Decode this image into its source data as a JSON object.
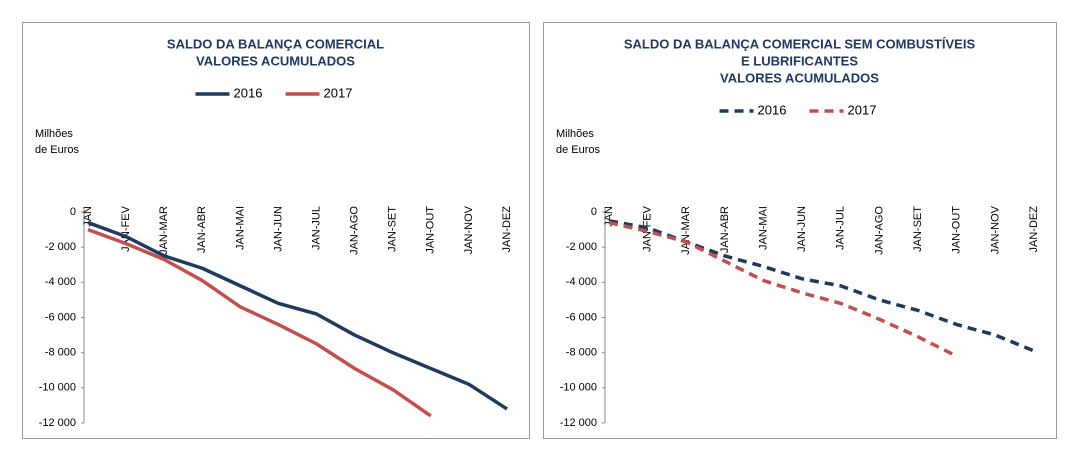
{
  "chart_data": [
    {
      "type": "line",
      "title": [
        "SALDO DA BALANÇA COMERCIAL",
        "VALORES ACUMULADOS"
      ],
      "y_label": [
        "Milhões",
        "de Euros"
      ],
      "line_style": "solid",
      "categories": [
        "JAN",
        "JAN-FEV",
        "JAN-MAR",
        "JAN-ABR",
        "JAN-MAI",
        "JAN-JUN",
        "JAN-JUL",
        "JAN-AGO",
        "JAN-SET",
        "JAN-OUT",
        "JAN-NOV",
        "JAN-DEZ"
      ],
      "series": [
        {
          "name": "2016",
          "color": "#1f3a5f",
          "values": [
            -600,
            -1400,
            -2500,
            -3200,
            -4200,
            -5200,
            -5800,
            -7000,
            -8000,
            -8900,
            -9800,
            -11200
          ]
        },
        {
          "name": "2017",
          "color": "#c0504d",
          "values": [
            -1000,
            -1800,
            -2700,
            -3900,
            -5400,
            -6400,
            -7500,
            -8900,
            -10100,
            -11600,
            null,
            null
          ]
        }
      ],
      "ylim": [
        -12000,
        0
      ],
      "yticks": [
        0,
        {
          "value": -2000,
          "label": "-2 000"
        },
        {
          "value": -4000,
          "label": "-4 000"
        },
        {
          "value": -6000,
          "label": "-6 000"
        },
        {
          "value": -8000,
          "label": "-8 000"
        },
        {
          "value": -10000,
          "label": "-10 000"
        },
        {
          "value": -12000,
          "label": "-12 000"
        }
      ],
      "grid": false
    },
    {
      "type": "line",
      "title": [
        "SALDO DA BALANÇA COMERCIAL SEM COMBUSTÍVEIS",
        "E LUBRIFICANTES",
        "VALORES ACUMULADOS"
      ],
      "y_label": [
        "Milhões",
        "de Euros"
      ],
      "line_style": "dashed",
      "categories": [
        "JAN",
        "JAN-FEV",
        "JAN-MAR",
        "JAN-ABR",
        "JAN-MAI",
        "JAN-JUN",
        "JAN-JUL",
        "JAN-AGO",
        "JAN-SET",
        "JAN-OUT",
        "JAN-NOV",
        "JAN-DEZ"
      ],
      "series": [
        {
          "name": "2016",
          "color": "#1f3a5f",
          "values": [
            -500,
            -900,
            -1700,
            -2500,
            -3100,
            -3800,
            -4200,
            -5000,
            -5600,
            -6400,
            -7000,
            -7900
          ]
        },
        {
          "name": "2017",
          "color": "#c0504d",
          "values": [
            -600,
            -1100,
            -1700,
            -2800,
            -3900,
            -4600,
            -5200,
            -6100,
            -7100,
            -8200,
            null,
            null
          ]
        }
      ],
      "ylim": [
        -12000,
        0
      ],
      "yticks": [
        0,
        {
          "value": -2000,
          "label": "-2 000"
        },
        {
          "value": -4000,
          "label": "-4 000"
        },
        {
          "value": -6000,
          "label": "-6 000"
        },
        {
          "value": -8000,
          "label": "-8 000"
        },
        {
          "value": -10000,
          "label": "-10 000"
        },
        {
          "value": -12000,
          "label": "-12 000"
        }
      ],
      "grid": false
    }
  ]
}
